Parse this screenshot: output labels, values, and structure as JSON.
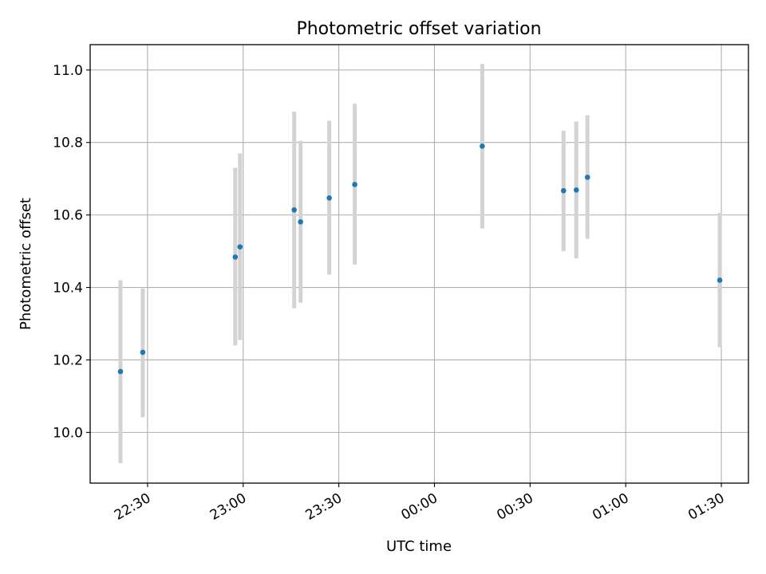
{
  "chart_data": {
    "type": "scatter",
    "title": "Photometric offset variation",
    "xlabel": "UTC time",
    "ylabel": "Photometric offset",
    "grid": true,
    "legend": "none",
    "x_ticks": [
      "22:30",
      "23:00",
      "23:30",
      "00:00",
      "00:30",
      "01:00",
      "01:30"
    ],
    "x_tick_minutes": [
      0,
      30,
      60,
      90,
      120,
      150,
      180
    ],
    "x_range_minutes": [
      -18,
      188.5
    ],
    "y_ticks": [
      "10.0",
      "10.2",
      "10.4",
      "10.6",
      "10.8",
      "11.0"
    ],
    "y_tick_values": [
      10.0,
      10.2,
      10.4,
      10.6,
      10.8,
      11.0
    ],
    "ylim": [
      9.86,
      11.07
    ],
    "colors": {
      "point": "#1f77b4",
      "errorbar": "#d3d3d3",
      "grid": "#b0b0b0"
    },
    "series": [
      {
        "points": [
          {
            "t": "22:21:30",
            "m": -8.5,
            "y": 10.168,
            "lo": 9.915,
            "hi": 10.42
          },
          {
            "t": "22:28:30",
            "m": -1.5,
            "y": 10.221,
            "lo": 10.042,
            "hi": 10.397
          },
          {
            "t": "22:57:30",
            "m": 27.5,
            "y": 10.484,
            "lo": 10.24,
            "hi": 10.73
          },
          {
            "t": "22:59:00",
            "m": 29.0,
            "y": 10.512,
            "lo": 10.255,
            "hi": 10.77
          },
          {
            "t": "23:16:00",
            "m": 46.0,
            "y": 10.614,
            "lo": 10.343,
            "hi": 10.885
          },
          {
            "t": "23:18:00",
            "m": 48.0,
            "y": 10.581,
            "lo": 10.358,
            "hi": 10.805
          },
          {
            "t": "23:27:00",
            "m": 57.0,
            "y": 10.647,
            "lo": 10.435,
            "hi": 10.86
          },
          {
            "t": "23:35:00",
            "m": 65.0,
            "y": 10.684,
            "lo": 10.463,
            "hi": 10.907
          },
          {
            "t": "00:15:00",
            "m": 105.0,
            "y": 10.79,
            "lo": 10.563,
            "hi": 11.017
          },
          {
            "t": "00:40:30",
            "m": 130.5,
            "y": 10.667,
            "lo": 10.5,
            "hi": 10.832
          },
          {
            "t": "00:44:30",
            "m": 134.5,
            "y": 10.669,
            "lo": 10.48,
            "hi": 10.858
          },
          {
            "t": "00:48:00",
            "m": 138.0,
            "y": 10.704,
            "lo": 10.534,
            "hi": 10.875
          },
          {
            "t": "01:29:30",
            "m": 179.5,
            "y": 10.42,
            "lo": 10.235,
            "hi": 10.606
          }
        ]
      }
    ]
  }
}
